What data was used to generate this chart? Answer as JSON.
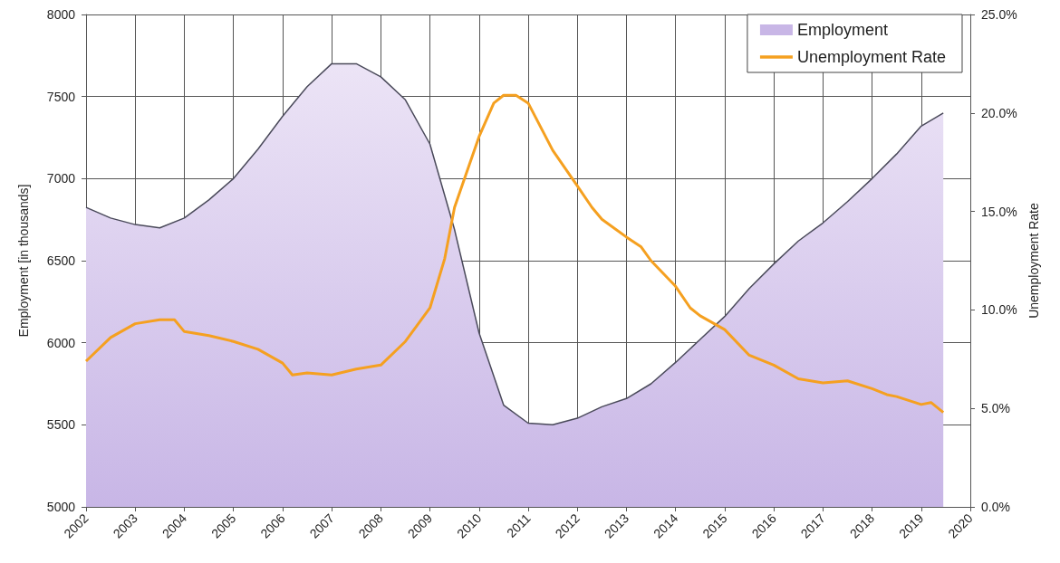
{
  "chart_data": {
    "type": "area",
    "ylabel": "Employment [in thousands]",
    "y2label": "Unemployment Rate",
    "xlim": [
      2002,
      2020
    ],
    "xticks": [
      2002,
      2003,
      2004,
      2005,
      2006,
      2007,
      2008,
      2009,
      2010,
      2011,
      2012,
      2013,
      2014,
      2015,
      2016,
      2017,
      2018,
      2019,
      2020
    ],
    "ylim": [
      5000,
      8000
    ],
    "yticks": [
      5000,
      5500,
      6000,
      6500,
      7000,
      7500,
      8000
    ],
    "y2lim": [
      0,
      25
    ],
    "y2ticks": [
      {
        "value": 0,
        "label": "0.0%"
      },
      {
        "value": 5,
        "label": "5.0%"
      },
      {
        "value": 10,
        "label": "10.0%"
      },
      {
        "value": 15,
        "label": "15.0%"
      },
      {
        "value": 20,
        "label": "20.0%"
      },
      {
        "value": 25,
        "label": "25.0%"
      }
    ],
    "grid": true,
    "legend": "top right",
    "marker": "none",
    "line_style": "solid",
    "series": [
      {
        "name": "Employment",
        "color": "#c8b6e6",
        "x": [
          2002,
          2002.5,
          2003,
          2003.5,
          2004,
          2004.5,
          2005,
          2005.5,
          2006,
          2006.5,
          2007,
          2007.5,
          2008,
          2008.5,
          2009,
          2009.5,
          2010,
          2010.5,
          2011,
          2011.5,
          2012,
          2012.5,
          2013,
          2013.5,
          2014,
          2014.5,
          2015,
          2015.5,
          2016,
          2016.5,
          2017,
          2017.5,
          2018,
          2018.5,
          2019,
          2019.45
        ],
        "values": [
          6825,
          6760,
          6720,
          6700,
          6760,
          6870,
          7000,
          7180,
          7380,
          7560,
          7700,
          7700,
          7620,
          7480,
          7210,
          6690,
          6060,
          5620,
          5510,
          5500,
          5540,
          5610,
          5660,
          5750,
          5880,
          6020,
          6160,
          6330,
          6480,
          6620,
          6730,
          6860,
          7000,
          7150,
          7320,
          7400
        ]
      },
      {
        "name": "Unemployment Rate",
        "type": "line",
        "axis": "y2",
        "color": "#f5a020",
        "x": [
          2002,
          2002.5,
          2003,
          2003.5,
          2003.8,
          2004,
          2004.5,
          2005,
          2005.5,
          2006,
          2006.2,
          2006.5,
          2007,
          2007.5,
          2008,
          2008.5,
          2009,
          2009.3,
          2009.5,
          2010,
          2010.3,
          2010.5,
          2010.75,
          2011,
          2011.5,
          2012,
          2012.3,
          2012.5,
          2013,
          2013.3,
          2013.5,
          2014,
          2014.3,
          2014.5,
          2015,
          2015.5,
          2016,
          2016.5,
          2017,
          2017.5,
          2018,
          2018.3,
          2018.5,
          2019,
          2019.2,
          2019.45
        ],
        "values": [
          7.4,
          8.6,
          9.3,
          9.5,
          9.5,
          8.9,
          8.7,
          8.4,
          8.0,
          7.3,
          6.7,
          6.8,
          6.7,
          7.0,
          7.2,
          8.4,
          10.1,
          12.6,
          15.2,
          18.8,
          20.5,
          20.9,
          20.9,
          20.5,
          18.1,
          16.3,
          15.2,
          14.6,
          13.7,
          13.2,
          12.5,
          11.2,
          10.1,
          9.7,
          9.0,
          7.7,
          7.2,
          6.5,
          6.3,
          6.4,
          6.0,
          5.7,
          5.6,
          5.2,
          5.3,
          4.8
        ]
      }
    ]
  }
}
